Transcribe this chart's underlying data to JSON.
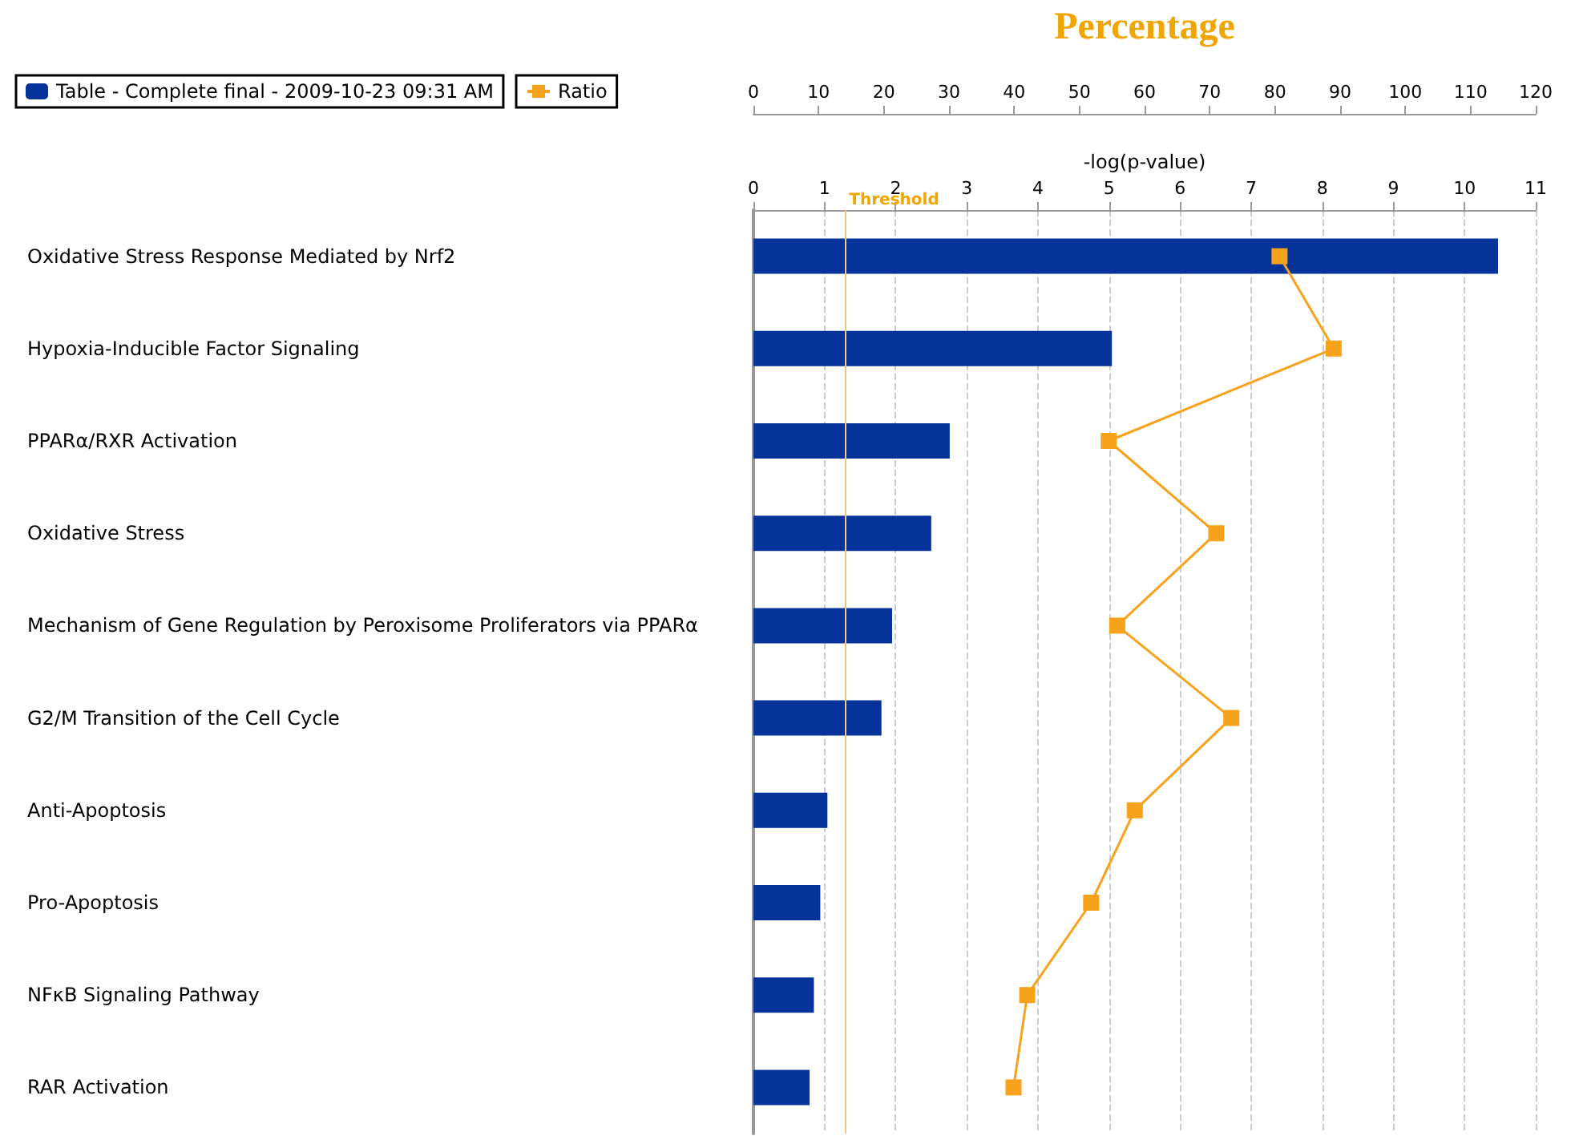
{
  "chart_data": {
    "type": "bar",
    "orientation": "horizontal",
    "categories": [
      "Oxidative Stress Response Mediated by Nrf2",
      "Hypoxia-Inducible Factor Signaling",
      "PPARα/RXR Activation",
      "Oxidative Stress",
      "Mechanism of Gene Regulation by Peroxisome Proliferators via PPARα",
      "G2/M Transition of the Cell Cycle",
      "Anti-Apoptosis",
      "Pro-Apoptosis",
      "NFκB Signaling Pathway",
      "RAR Activation"
    ],
    "series": [
      {
        "name": "Table - Complete final - 2009-10-23 09:31 AM",
        "color": "#06339a",
        "values": [
          10.47,
          5.04,
          2.76,
          2.5,
          1.95,
          1.8,
          1.04,
          0.94,
          0.85,
          0.79
        ]
      },
      {
        "name": "Ratio",
        "type": "line",
        "axis": "x2",
        "color": "#f7a21b",
        "values": [
          80.7,
          89.0,
          54.5,
          71.0,
          55.8,
          73.3,
          58.5,
          51.8,
          42.0,
          39.9
        ]
      }
    ],
    "xlabel": "-log(p-value)",
    "x2label": "Percentage",
    "xlim": [
      0,
      11
    ],
    "xticks": [
      0,
      1,
      2,
      3,
      4,
      5,
      6,
      7,
      8,
      9,
      10,
      11
    ],
    "x2lim": [
      0,
      120
    ],
    "x2ticks": [
      0,
      10,
      20,
      30,
      40,
      50,
      60,
      70,
      80,
      90,
      100,
      110,
      120
    ],
    "ref_lines": [
      {
        "axis": "x",
        "value": 1.3,
        "label": "Threshold",
        "color": "#f7c27a"
      }
    ],
    "grid": "x",
    "legend": "top left",
    "marker": "square",
    "line_style": "solid"
  }
}
